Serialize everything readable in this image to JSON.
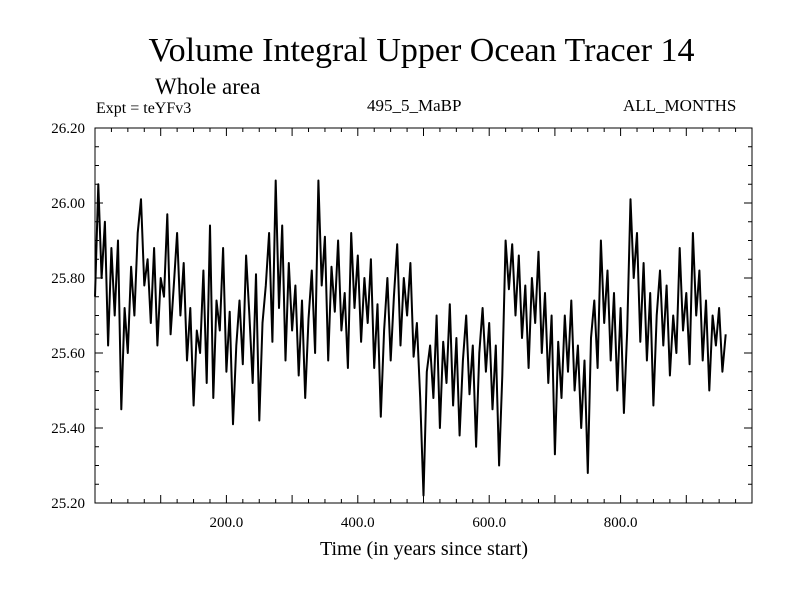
{
  "header": {
    "title": "Volume Integral Upper Ocean Tracer 14",
    "subtitle": "Whole area",
    "experiment": "Expt = teYFv3",
    "run_label": "495_5_MaBP",
    "period": "ALL_MONTHS"
  },
  "chart_data": {
    "type": "line",
    "title": "Volume Integral Upper Ocean Tracer 14",
    "xlabel": "Time (in years since start)",
    "ylabel": "",
    "xlim": [
      0,
      1000
    ],
    "ylim": [
      25.2,
      26.2
    ],
    "x_ticks": [
      200,
      400,
      600,
      800
    ],
    "x_tick_labels": [
      "200.0",
      "400.0",
      "600.0",
      "800.0"
    ],
    "y_ticks": [
      25.2,
      25.4,
      25.6,
      25.8,
      26.0,
      26.2
    ],
    "y_tick_labels": [
      "25.20",
      "25.40",
      "25.60",
      "25.80",
      "26.00",
      "26.20"
    ],
    "grid": false,
    "series": [
      {
        "name": "Volume Integral Upper Ocean Tracer 14",
        "x_start": 0,
        "x_step": 5,
        "values": [
          25.75,
          26.05,
          25.8,
          25.95,
          25.62,
          25.88,
          25.7,
          25.9,
          25.45,
          25.72,
          25.6,
          25.83,
          25.7,
          25.92,
          26.01,
          25.78,
          25.85,
          25.68,
          25.88,
          25.62,
          25.8,
          25.75,
          25.97,
          25.65,
          25.78,
          25.92,
          25.7,
          25.84,
          25.58,
          25.72,
          25.46,
          25.66,
          25.6,
          25.82,
          25.52,
          25.94,
          25.48,
          25.74,
          25.66,
          25.88,
          25.55,
          25.71,
          25.41,
          25.62,
          25.74,
          25.57,
          25.86,
          25.7,
          25.52,
          25.81,
          25.42,
          25.68,
          25.78,
          25.92,
          25.63,
          26.06,
          25.72,
          25.94,
          25.58,
          25.84,
          25.66,
          25.78,
          25.54,
          25.74,
          25.48,
          25.69,
          25.82,
          25.6,
          26.06,
          25.78,
          25.91,
          25.58,
          25.83,
          25.71,
          25.9,
          25.66,
          25.76,
          25.56,
          25.92,
          25.72,
          25.86,
          25.63,
          25.8,
          25.68,
          25.85,
          25.56,
          25.73,
          25.43,
          25.66,
          25.8,
          25.58,
          25.75,
          25.89,
          25.62,
          25.8,
          25.7,
          25.84,
          25.59,
          25.68,
          25.48,
          25.22,
          25.55,
          25.62,
          25.48,
          25.7,
          25.4,
          25.63,
          25.52,
          25.73,
          25.46,
          25.64,
          25.38,
          25.58,
          25.7,
          25.49,
          25.62,
          25.35,
          25.6,
          25.72,
          25.55,
          25.68,
          25.45,
          25.62,
          25.3,
          25.54,
          25.9,
          25.77,
          25.89,
          25.7,
          25.86,
          25.64,
          25.78,
          25.56,
          25.8,
          25.68,
          25.87,
          25.6,
          25.76,
          25.52,
          25.7,
          25.33,
          25.63,
          25.48,
          25.7,
          25.55,
          25.74,
          25.5,
          25.62,
          25.4,
          25.58,
          25.28,
          25.64,
          25.74,
          25.56,
          25.9,
          25.68,
          25.82,
          25.58,
          25.76,
          25.5,
          25.72,
          25.44,
          25.66,
          26.01,
          25.8,
          25.92,
          25.63,
          25.84,
          25.58,
          25.76,
          25.46,
          25.7,
          25.82,
          25.62,
          25.78,
          25.54,
          25.7,
          25.6,
          25.88,
          25.66,
          25.76,
          25.57,
          25.92,
          25.7,
          25.82,
          25.58,
          25.74,
          25.5,
          25.7,
          25.62,
          25.72,
          25.55,
          25.65
        ]
      }
    ]
  }
}
